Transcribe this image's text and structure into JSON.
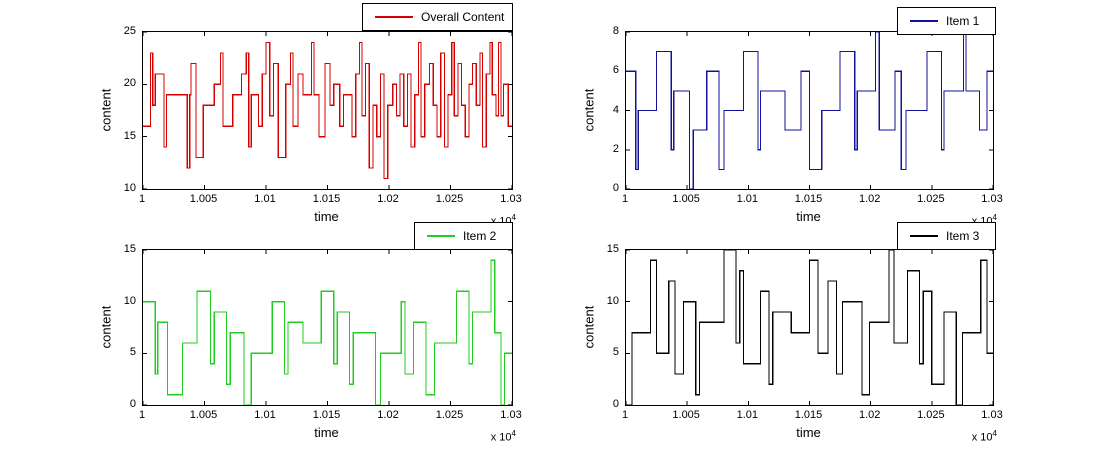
{
  "figure": {
    "background": "#ffffff",
    "axis_color": "#000000"
  },
  "labels": {
    "exponent_prefix": "x 10",
    "exponent": "4"
  },
  "chart_data": [
    {
      "type": "line",
      "subtype": "stairs",
      "legend": "Overall Content",
      "color": "#d50000",
      "xlabel": "time",
      "ylabel": "content",
      "xlim": [
        10000,
        10300
      ],
      "ylim": [
        10,
        25
      ],
      "x_scale_factor": "x 10^4",
      "xtick_values": [
        10000,
        10050,
        10100,
        10150,
        10200,
        10250,
        10300
      ],
      "xtick_labels": [
        "1",
        "1.005",
        "1.01",
        "1.015",
        "1.02",
        "1.025",
        "1.03"
      ],
      "ytick_values": [
        10,
        15,
        20,
        25
      ],
      "ytick_labels": [
        "10",
        "15",
        "20",
        "25"
      ],
      "legend_position": "upper-right-outside",
      "grid": false,
      "steps": [
        [
          10000,
          16
        ],
        [
          10006,
          23
        ],
        [
          10008,
          18
        ],
        [
          10010,
          21
        ],
        [
          10017,
          14
        ],
        [
          10019,
          19
        ],
        [
          10036,
          12
        ],
        [
          10038,
          19
        ],
        [
          10039,
          22
        ],
        [
          10043,
          13
        ],
        [
          10049,
          18
        ],
        [
          10058,
          20
        ],
        [
          10063,
          23
        ],
        [
          10065,
          16
        ],
        [
          10073,
          19
        ],
        [
          10080,
          21
        ],
        [
          10084,
          23
        ],
        [
          10086,
          14
        ],
        [
          10088,
          19
        ],
        [
          10094,
          16
        ],
        [
          10097,
          21
        ],
        [
          10100,
          24
        ],
        [
          10103,
          17
        ],
        [
          10106,
          22
        ],
        [
          10110,
          13
        ],
        [
          10116,
          20
        ],
        [
          10120,
          23
        ],
        [
          10122,
          16
        ],
        [
          10126,
          21
        ],
        [
          10130,
          19
        ],
        [
          10137,
          24
        ],
        [
          10139,
          19
        ],
        [
          10143,
          15
        ],
        [
          10148,
          22
        ],
        [
          10152,
          18
        ],
        [
          10155,
          20
        ],
        [
          10160,
          16
        ],
        [
          10163,
          19
        ],
        [
          10170,
          15
        ],
        [
          10173,
          21
        ],
        [
          10176,
          24
        ],
        [
          10178,
          17
        ],
        [
          10181,
          22
        ],
        [
          10184,
          12
        ],
        [
          10187,
          18
        ],
        [
          10190,
          15
        ],
        [
          10193,
          21
        ],
        [
          10196,
          11
        ],
        [
          10199,
          18
        ],
        [
          10203,
          20
        ],
        [
          10206,
          17
        ],
        [
          10209,
          21
        ],
        [
          10212,
          16
        ],
        [
          10215,
          21
        ],
        [
          10218,
          14
        ],
        [
          10221,
          19
        ],
        [
          10224,
          24
        ],
        [
          10226,
          15
        ],
        [
          10229,
          20
        ],
        [
          10233,
          22
        ],
        [
          10236,
          18
        ],
        [
          10239,
          15
        ],
        [
          10242,
          23
        ],
        [
          10245,
          14
        ],
        [
          10248,
          19
        ],
        [
          10251,
          24
        ],
        [
          10253,
          17
        ],
        [
          10256,
          22
        ],
        [
          10259,
          18
        ],
        [
          10262,
          15
        ],
        [
          10265,
          20
        ],
        [
          10268,
          22
        ],
        [
          10271,
          18
        ],
        [
          10274,
          23
        ],
        [
          10276,
          14
        ],
        [
          10279,
          21
        ],
        [
          10282,
          24
        ],
        [
          10284,
          19
        ],
        [
          10287,
          17
        ],
        [
          10289,
          24
        ],
        [
          10291,
          17
        ],
        [
          10293,
          20
        ],
        [
          10297,
          16
        ]
      ]
    },
    {
      "type": "line",
      "subtype": "stairs",
      "legend": "Item 1",
      "color": "#12129b",
      "xlabel": "time",
      "ylabel": "content",
      "xlim": [
        10000,
        10300
      ],
      "ylim": [
        0,
        8
      ],
      "x_scale_factor": "x 10^4",
      "xtick_values": [
        10000,
        10050,
        10100,
        10150,
        10200,
        10250,
        10300
      ],
      "xtick_labels": [
        "1",
        "1.005",
        "1.01",
        "1.015",
        "1.02",
        "1.025",
        "1.03"
      ],
      "ytick_values": [
        0,
        2,
        4,
        6,
        8
      ],
      "ytick_labels": [
        "0",
        "2",
        "4",
        "6",
        "8"
      ],
      "legend_position": "upper-right-outside",
      "grid": false,
      "steps": [
        [
          10000,
          6
        ],
        [
          10008,
          1
        ],
        [
          10010,
          4
        ],
        [
          10025,
          7
        ],
        [
          10037,
          2
        ],
        [
          10039,
          5
        ],
        [
          10052,
          0
        ],
        [
          10055,
          3
        ],
        [
          10066,
          6
        ],
        [
          10076,
          1
        ],
        [
          10080,
          4
        ],
        [
          10096,
          7
        ],
        [
          10108,
          2
        ],
        [
          10110,
          5
        ],
        [
          10130,
          3
        ],
        [
          10143,
          6
        ],
        [
          10150,
          1
        ],
        [
          10160,
          4
        ],
        [
          10175,
          7
        ],
        [
          10187,
          2
        ],
        [
          10189,
          5
        ],
        [
          10204,
          8
        ],
        [
          10207,
          3
        ],
        [
          10220,
          6
        ],
        [
          10225,
          1
        ],
        [
          10229,
          4
        ],
        [
          10246,
          7
        ],
        [
          10258,
          2
        ],
        [
          10260,
          5
        ],
        [
          10276,
          8
        ],
        [
          10278,
          5
        ],
        [
          10289,
          3
        ],
        [
          10295,
          6
        ]
      ]
    },
    {
      "type": "line",
      "subtype": "stairs",
      "legend": "Item 2",
      "color": "#22cc22",
      "xlabel": "time",
      "ylabel": "content",
      "xlim": [
        10000,
        10300
      ],
      "ylim": [
        0,
        15
      ],
      "x_scale_factor": "x 10^4",
      "xtick_values": [
        10000,
        10050,
        10100,
        10150,
        10200,
        10250,
        10300
      ],
      "xtick_labels": [
        "1",
        "1.005",
        "1.01",
        "1.015",
        "1.02",
        "1.025",
        "1.03"
      ],
      "ytick_values": [
        0,
        5,
        10,
        15
      ],
      "ytick_labels": [
        "0",
        "5",
        "10",
        "15"
      ],
      "legend_position": "upper-right-outside",
      "grid": false,
      "steps": [
        [
          10000,
          10
        ],
        [
          10010,
          3
        ],
        [
          10012,
          8
        ],
        [
          10020,
          1
        ],
        [
          10032,
          6
        ],
        [
          10044,
          11
        ],
        [
          10055,
          4
        ],
        [
          10058,
          9
        ],
        [
          10068,
          2
        ],
        [
          10071,
          7
        ],
        [
          10082,
          0
        ],
        [
          10088,
          5
        ],
        [
          10105,
          10
        ],
        [
          10115,
          3
        ],
        [
          10118,
          8
        ],
        [
          10130,
          6
        ],
        [
          10145,
          11
        ],
        [
          10155,
          4
        ],
        [
          10158,
          9
        ],
        [
          10168,
          2
        ],
        [
          10171,
          7
        ],
        [
          10189,
          0
        ],
        [
          10193,
          5
        ],
        [
          10210,
          10
        ],
        [
          10213,
          3
        ],
        [
          10220,
          8
        ],
        [
          10230,
          1
        ],
        [
          10237,
          6
        ],
        [
          10255,
          11
        ],
        [
          10265,
          4
        ],
        [
          10268,
          9
        ],
        [
          10283,
          14
        ],
        [
          10286,
          7
        ],
        [
          10291,
          0
        ],
        [
          10294,
          5
        ]
      ]
    },
    {
      "type": "line",
      "subtype": "stairs",
      "legend": "Item 3",
      "color": "#000000",
      "xlabel": "time",
      "ylabel": "content",
      "xlim": [
        10000,
        10300
      ],
      "ylim": [
        0,
        15
      ],
      "x_scale_factor": "x 10^4",
      "xtick_values": [
        10000,
        10050,
        10100,
        10150,
        10200,
        10250,
        10300
      ],
      "xtick_labels": [
        "1",
        "1.005",
        "1.01",
        "1.015",
        "1.02",
        "1.025",
        "1.03"
      ],
      "ytick_values": [
        0,
        5,
        10,
        15
      ],
      "ytick_labels": [
        "0",
        "5",
        "10",
        "15"
      ],
      "legend_position": "upper-right-outside",
      "grid": false,
      "steps": [
        [
          10000,
          0
        ],
        [
          10005,
          7
        ],
        [
          10020,
          14
        ],
        [
          10025,
          5
        ],
        [
          10035,
          12
        ],
        [
          10040,
          3
        ],
        [
          10047,
          10
        ],
        [
          10057,
          1
        ],
        [
          10060,
          8
        ],
        [
          10080,
          15
        ],
        [
          10090,
          6
        ],
        [
          10093,
          13
        ],
        [
          10096,
          4
        ],
        [
          10110,
          11
        ],
        [
          10117,
          2
        ],
        [
          10120,
          9
        ],
        [
          10135,
          7
        ],
        [
          10150,
          14
        ],
        [
          10157,
          5
        ],
        [
          10165,
          12
        ],
        [
          10172,
          3
        ],
        [
          10177,
          10
        ],
        [
          10193,
          1
        ],
        [
          10199,
          8
        ],
        [
          10215,
          15
        ],
        [
          10219,
          6
        ],
        [
          10230,
          13
        ],
        [
          10240,
          4
        ],
        [
          10243,
          11
        ],
        [
          10250,
          2
        ],
        [
          10260,
          9
        ],
        [
          10270,
          0
        ],
        [
          10275,
          7
        ],
        [
          10290,
          14
        ],
        [
          10295,
          5
        ]
      ]
    }
  ]
}
